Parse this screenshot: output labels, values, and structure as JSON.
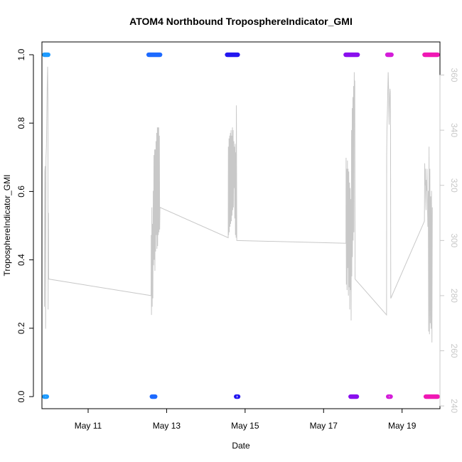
{
  "chart_data": {
    "type": "scatter",
    "title": "ATOM4 Northbound TroposphereIndicator_GMI",
    "xlabel": "Date",
    "ylabel": "TroposphereIndicator_GMI",
    "x_ticks": [
      "May 11",
      "May 13",
      "May 15",
      "May 17",
      "May 19"
    ],
    "xlim": [
      "2018-05-09T19:45",
      "2018-05-19T23:10"
    ],
    "y_left": {
      "lim": [
        0,
        1
      ],
      "ticks": [
        "0.0",
        "0.2",
        "0.4",
        "0.6",
        "0.8",
        "1.0"
      ]
    },
    "y_right": {
      "lim": [
        239,
        372
      ],
      "ticks": [
        "240",
        "260",
        "280",
        "300",
        "320",
        "340",
        "360"
      ],
      "color": "#c8c8c8"
    },
    "grid": false,
    "legend": "none",
    "series": [
      {
        "kind": "indicator_points",
        "axis": "left",
        "marker": "open-circle",
        "groups": [
          {
            "color": "#1e9bff",
            "value": 1,
            "x_range": [
              "2018-05-09T21:10",
              "2018-05-09T23:35"
            ]
          },
          {
            "color": "#1e9bff",
            "value": 0,
            "x_range": [
              "2018-05-09T21:10",
              "2018-05-09T22:45"
            ]
          },
          {
            "color": "#1e6bff",
            "value": 1,
            "x_range": [
              "2018-05-12T13:00",
              "2018-05-12T20:00"
            ]
          },
          {
            "color": "#1e6bff",
            "value": 0,
            "x_range": [
              "2018-05-12T15:00",
              "2018-05-12T17:00"
            ]
          },
          {
            "color": "#2418f0",
            "value": 1,
            "x_range": [
              "2018-05-14T13:00",
              "2018-05-14T19:30"
            ]
          },
          {
            "color": "#2418f0",
            "value": 0,
            "x_range": [
              "2018-05-14T18:30",
              "2018-05-14T19:45"
            ]
          },
          {
            "color": "#8a10ee",
            "value": 1,
            "x_range": [
              "2018-05-17T13:30",
              "2018-05-17T20:50"
            ]
          },
          {
            "color": "#8a10ee",
            "value": 0,
            "x_range": [
              "2018-05-17T16:30",
              "2018-05-17T20:20"
            ]
          },
          {
            "color": "#d41ed9",
            "value": 1,
            "x_range": [
              "2018-05-18T15:00",
              "2018-05-18T17:30"
            ]
          },
          {
            "color": "#d41ed9",
            "value": 0,
            "x_range": [
              "2018-05-18T15:30",
              "2018-05-18T17:00"
            ]
          },
          {
            "color": "#f019b4",
            "value": 1,
            "x_range": [
              "2018-05-19T13:45",
              "2018-05-19T21:45"
            ]
          },
          {
            "color": "#f019b4",
            "value": 0,
            "x_range": [
              "2018-05-19T14:30",
              "2018-05-19T21:45"
            ]
          }
        ]
      },
      {
        "kind": "line",
        "axis": "right",
        "color": "#c8c8c8",
        "points": [
          [
            "2018-05-09T21:15",
            276
          ],
          [
            "2018-05-09T21:30",
            325
          ],
          [
            "2018-05-09T21:45",
            327
          ],
          [
            "2018-05-09T22:00",
            268
          ],
          [
            "2018-05-09T22:15",
            330
          ],
          [
            "2018-05-09T22:30",
            334
          ],
          [
            "2018-05-09T22:45",
            346
          ],
          [
            "2018-05-09T23:00",
            357
          ],
          [
            "2018-05-09T23:15",
            363
          ],
          [
            "2018-05-09T23:25",
            352
          ],
          [
            "2018-05-09T23:32",
            275
          ],
          [
            "2018-05-09T23:38",
            302
          ],
          [
            "2018-05-09T23:45",
            310
          ],
          [
            "2018-05-09T23:52",
            287
          ],
          [
            "2018-05-09T23:58",
            286
          ],
          [
            "2018-05-12T14:30",
            280
          ],
          [
            "2018-05-12T14:35",
            302
          ],
          [
            "2018-05-12T14:45",
            273
          ],
          [
            "2018-05-12T15:00",
            312
          ],
          [
            "2018-05-12T15:10",
            276
          ],
          [
            "2018-05-12T15:25",
            306
          ],
          [
            "2018-05-12T15:35",
            279
          ],
          [
            "2018-05-12T15:50",
            318
          ],
          [
            "2018-05-12T16:00",
            291
          ],
          [
            "2018-05-12T16:15",
            331
          ],
          [
            "2018-05-12T16:25",
            293
          ],
          [
            "2018-05-12T16:40",
            333
          ],
          [
            "2018-05-12T16:50",
            289
          ],
          [
            "2018-05-12T17:05",
            333
          ],
          [
            "2018-05-12T17:15",
            296
          ],
          [
            "2018-05-12T17:30",
            336
          ],
          [
            "2018-05-12T17:40",
            302
          ],
          [
            "2018-05-12T17:55",
            339
          ],
          [
            "2018-05-12T18:05",
            297
          ],
          [
            "2018-05-12T18:20",
            341
          ],
          [
            "2018-05-12T18:30",
            298
          ],
          [
            "2018-05-12T18:45",
            341
          ],
          [
            "2018-05-12T18:55",
            302
          ],
          [
            "2018-05-12T19:10",
            341
          ],
          [
            "2018-05-12T19:20",
            303
          ],
          [
            "2018-05-12T19:35",
            338
          ],
          [
            "2018-05-12T19:45",
            304
          ],
          [
            "2018-05-12T19:55",
            312
          ],
          [
            "2018-05-14T13:40",
            301
          ],
          [
            "2018-05-14T13:45",
            334
          ],
          [
            "2018-05-14T13:55",
            302
          ],
          [
            "2018-05-14T14:10",
            337
          ],
          [
            "2018-05-14T14:20",
            303
          ],
          [
            "2018-05-14T14:35",
            338
          ],
          [
            "2018-05-14T14:45",
            305
          ],
          [
            "2018-05-14T15:00",
            339
          ],
          [
            "2018-05-14T15:10",
            306
          ],
          [
            "2018-05-14T15:25",
            340
          ],
          [
            "2018-05-14T15:35",
            307
          ],
          [
            "2018-05-14T15:50",
            338
          ],
          [
            "2018-05-14T16:00",
            309
          ],
          [
            "2018-05-14T16:15",
            341
          ],
          [
            "2018-05-14T16:25",
            311
          ],
          [
            "2018-05-14T16:40",
            340
          ],
          [
            "2018-05-14T16:50",
            312
          ],
          [
            "2018-05-14T17:05",
            336
          ],
          [
            "2018-05-14T17:15",
            319
          ],
          [
            "2018-05-14T17:30",
            334
          ],
          [
            "2018-05-14T17:40",
            308
          ],
          [
            "2018-05-14T17:55",
            335
          ],
          [
            "2018-05-14T18:05",
            302
          ],
          [
            "2018-05-14T18:20",
            332
          ],
          [
            "2018-05-14T18:30",
            301
          ],
          [
            "2018-05-14T18:40",
            349
          ],
          [
            "2018-05-14T18:55",
            300
          ],
          [
            "2018-05-17T13:40",
            299
          ],
          [
            "2018-05-17T13:45",
            330
          ],
          [
            "2018-05-17T13:55",
            284
          ],
          [
            "2018-05-17T14:10",
            326
          ],
          [
            "2018-05-17T14:20",
            282
          ],
          [
            "2018-05-17T14:35",
            329
          ],
          [
            "2018-05-17T14:45",
            290
          ],
          [
            "2018-05-17T15:00",
            326
          ],
          [
            "2018-05-17T15:10",
            280
          ],
          [
            "2018-05-17T15:25",
            325
          ],
          [
            "2018-05-17T15:35",
            283
          ],
          [
            "2018-05-17T15:50",
            321
          ],
          [
            "2018-05-17T16:00",
            275
          ],
          [
            "2018-05-17T16:15",
            319
          ],
          [
            "2018-05-17T16:25",
            282
          ],
          [
            "2018-05-17T16:40",
            315
          ],
          [
            "2018-05-17T16:50",
            271
          ],
          [
            "2018-05-17T17:05",
            340
          ],
          [
            "2018-05-17T17:15",
            287
          ],
          [
            "2018-05-17T17:30",
            348
          ],
          [
            "2018-05-17T17:40",
            294
          ],
          [
            "2018-05-17T17:55",
            352
          ],
          [
            "2018-05-17T18:05",
            300
          ],
          [
            "2018-05-17T18:20",
            356
          ],
          [
            "2018-05-17T18:30",
            303
          ],
          [
            "2018-05-17T18:45",
            361
          ],
          [
            "2018-05-17T18:55",
            346
          ],
          [
            "2018-05-17T19:05",
            358
          ],
          [
            "2018-05-17T19:15",
            286
          ],
          [
            "2018-05-18T14:30",
            273
          ],
          [
            "2018-05-18T14:35",
            331
          ],
          [
            "2018-05-18T14:45",
            340
          ],
          [
            "2018-05-18T15:00",
            346
          ],
          [
            "2018-05-18T15:15",
            354
          ],
          [
            "2018-05-18T15:30",
            361
          ],
          [
            "2018-05-18T15:45",
            355
          ],
          [
            "2018-05-18T15:55",
            347
          ],
          [
            "2018-05-18T16:05",
            342
          ],
          [
            "2018-05-18T16:15",
            348
          ],
          [
            "2018-05-18T16:25",
            353
          ],
          [
            "2018-05-18T16:35",
            355
          ],
          [
            "2018-05-18T16:45",
            354
          ],
          [
            "2018-05-18T16:55",
            347
          ],
          [
            "2018-05-18T17:05",
            279
          ],
          [
            "2018-05-19T13:40",
            307
          ],
          [
            "2018-05-19T13:50",
            328
          ],
          [
            "2018-05-19T14:00",
            320
          ],
          [
            "2018-05-19T14:15",
            326
          ],
          [
            "2018-05-19T14:25",
            317
          ],
          [
            "2018-05-19T14:40",
            311
          ],
          [
            "2018-05-19T14:50",
            322
          ],
          [
            "2018-05-19T15:05",
            318
          ],
          [
            "2018-05-19T15:15",
            326
          ],
          [
            "2018-05-19T15:30",
            314
          ],
          [
            "2018-05-19T15:45",
            305
          ],
          [
            "2018-05-19T16:00",
            318
          ],
          [
            "2018-05-19T16:15",
            267
          ],
          [
            "2018-05-19T16:30",
            334
          ],
          [
            "2018-05-19T16:45",
            266
          ],
          [
            "2018-05-19T17:00",
            326
          ],
          [
            "2018-05-19T17:15",
            270
          ],
          [
            "2018-05-19T17:30",
            316
          ],
          [
            "2018-05-19T17:45",
            268
          ],
          [
            "2018-05-19T18:00",
            318
          ],
          [
            "2018-05-19T18:15",
            263
          ],
          [
            "2018-05-19T18:30",
            312
          ]
        ]
      }
    ]
  }
}
